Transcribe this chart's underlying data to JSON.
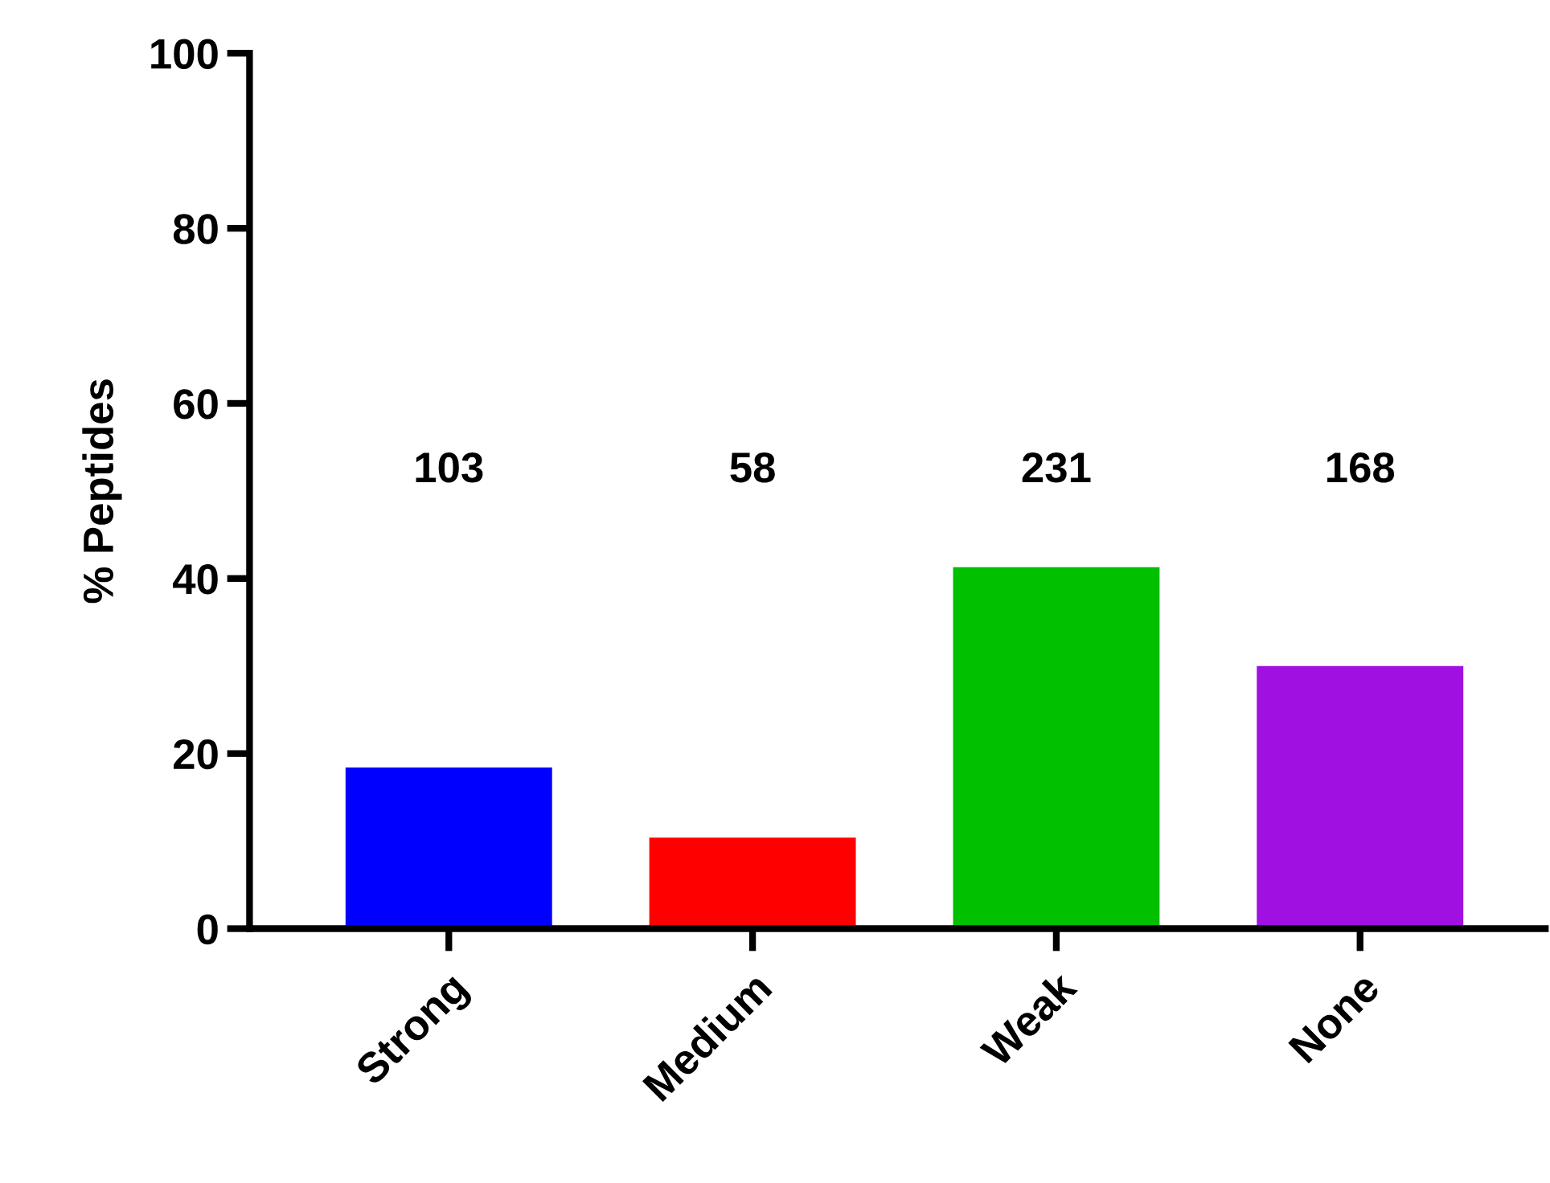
{
  "chart_data": {
    "type": "bar",
    "ylabel": "% Peptides",
    "categories": [
      "Strong",
      "Medium",
      "Weak",
      "None"
    ],
    "values": [
      18.4,
      10.4,
      41.3,
      30.0
    ],
    "colors": [
      "#0000ff",
      "#ff0000",
      "#00c000",
      "#a010e0"
    ],
    "annotations": [
      "103",
      "58",
      "231",
      "168"
    ],
    "ylim": [
      0,
      100
    ],
    "yticks": [
      0,
      20,
      40,
      60,
      80,
      100
    ],
    "grid": false,
    "legend": false
  }
}
